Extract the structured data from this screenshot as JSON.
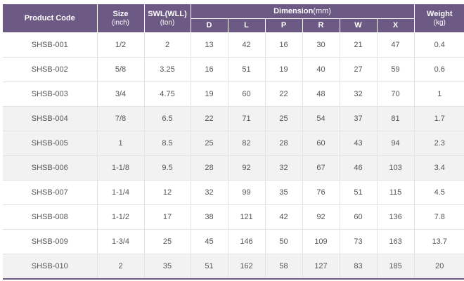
{
  "header": {
    "product_code": "Product Code",
    "size": {
      "label": "Size",
      "unit": "(inch)"
    },
    "swl": {
      "label": "SWL(WLL)",
      "unit": "(ton)"
    },
    "dimension": {
      "label": "Dimension",
      "unit": "(mm)"
    },
    "weight": {
      "label": "Weight",
      "unit": "(kg)"
    },
    "dim_columns": [
      "D",
      "L",
      "P",
      "R",
      "W",
      "X"
    ]
  },
  "rows": [
    {
      "code": "SHSB-001",
      "size": "1/2",
      "swl": "2",
      "D": "13",
      "L": "42",
      "P": "16",
      "R": "30",
      "W": "21",
      "X": "47",
      "weight": "0.4"
    },
    {
      "code": "SHSB-002",
      "size": "5/8",
      "swl": "3.25",
      "D": "16",
      "L": "51",
      "P": "19",
      "R": "40",
      "W": "27",
      "X": "59",
      "weight": "0.6"
    },
    {
      "code": "SHSB-003",
      "size": "3/4",
      "swl": "4.75",
      "D": "19",
      "L": "60",
      "P": "22",
      "R": "48",
      "W": "32",
      "X": "70",
      "weight": "1"
    },
    {
      "code": "SHSB-004",
      "size": "7/8",
      "swl": "6.5",
      "D": "22",
      "L": "71",
      "P": "25",
      "R": "54",
      "W": "37",
      "X": "81",
      "weight": "1.7"
    },
    {
      "code": "SHSB-005",
      "size": "1",
      "swl": "8.5",
      "D": "25",
      "L": "82",
      "P": "28",
      "R": "60",
      "W": "43",
      "X": "94",
      "weight": "2.3"
    },
    {
      "code": "SHSB-006",
      "size": "1-1/8",
      "swl": "9.5",
      "D": "28",
      "L": "92",
      "P": "32",
      "R": "67",
      "W": "46",
      "X": "103",
      "weight": "3.4"
    },
    {
      "code": "SHSB-007",
      "size": "1-1/4",
      "swl": "12",
      "D": "32",
      "L": "99",
      "P": "35",
      "R": "76",
      "W": "51",
      "X": "115",
      "weight": "4.5"
    },
    {
      "code": "SHSB-008",
      "size": "1-1/2",
      "swl": "17",
      "D": "38",
      "L": "121",
      "P": "42",
      "R": "92",
      "W": "60",
      "X": "136",
      "weight": "7.8"
    },
    {
      "code": "SHSB-009",
      "size": "1-3/4",
      "swl": "25",
      "D": "45",
      "L": "146",
      "P": "50",
      "R": "109",
      "W": "73",
      "X": "163",
      "weight": "13.7"
    },
    {
      "code": "SHSB-010",
      "size": "2",
      "swl": "35",
      "D": "51",
      "L": "162",
      "P": "58",
      "R": "127",
      "W": "83",
      "X": "185",
      "weight": "20"
    }
  ],
  "colors": {
    "header_bg": "#6d5a84",
    "header_text": "#ffffff",
    "shaded_row_bg": "#f2f2f2",
    "body_text": "#555555"
  }
}
